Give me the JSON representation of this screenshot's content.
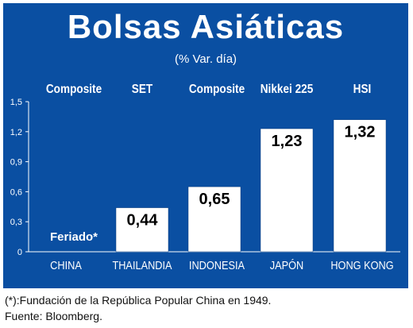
{
  "title": "Bolsas Asiáticas",
  "subtitle": "(% Var. día)",
  "footnote": "(*):Fundación de la República Popular China en 1949.",
  "source": "Fuente: Bloomberg.",
  "colors": {
    "panel": "#0a4fa2",
    "bar": "#ffffff",
    "text": "#ffffff"
  },
  "chart_data": {
    "type": "bar",
    "title": "Bolsas Asiáticas",
    "subtitle": "(% Var. día)",
    "categories": [
      "CHINA",
      "THAILANDIA",
      "INDONESIA",
      "JAPÓN",
      "HONG KONG"
    ],
    "indices": [
      "Composite",
      "SET",
      "Composite",
      "Nikkei 225",
      "HSI"
    ],
    "values": [
      null,
      0.44,
      0.65,
      1.23,
      1.32
    ],
    "value_labels": [
      "Feriado*",
      "0,44",
      "0,65",
      "1,23",
      "1,32"
    ],
    "yticks": [
      "0",
      "0,3",
      "0,6",
      "0,9",
      "1,2",
      "1,5"
    ],
    "ylim": [
      0,
      1.5
    ],
    "grid": false
  }
}
